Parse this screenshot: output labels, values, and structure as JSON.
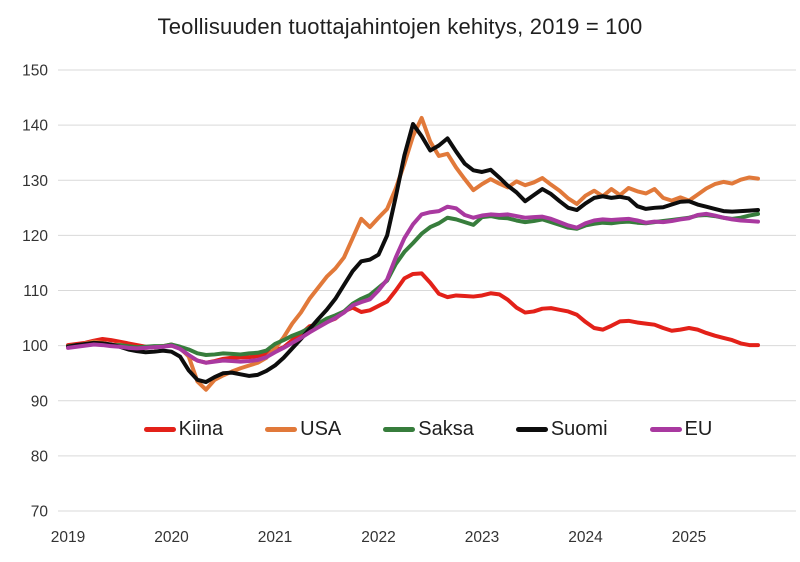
{
  "chart_data": {
    "type": "line",
    "title": "Teollisuuden tuottajahintojen kehitys, 2019 = 100",
    "x_axis": {
      "tick_labels": [
        "2019",
        "2020",
        "2021",
        "2022",
        "2023",
        "2024",
        "2025"
      ],
      "start": "2019-01",
      "end": "2025-09",
      "frequency": "monthly"
    },
    "y_axis": {
      "min": 70,
      "max": 150,
      "tick_step": 10
    },
    "grid": "horizontal-only",
    "legend_position": "bottom-center-overlay",
    "series": [
      {
        "name": "Kiina",
        "color": "#e32119",
        "values": [
          100.1,
          100.3,
          100.5,
          100.9,
          101.2,
          101.0,
          100.7,
          100.4,
          100.1,
          99.8,
          99.7,
          99.9,
          100.0,
          99.5,
          98.1,
          97.3,
          96.9,
          97.2,
          97.6,
          97.8,
          97.9,
          97.9,
          98.1,
          98.6,
          99.1,
          99.7,
          101.0,
          102.1,
          103.5,
          103.9,
          104.3,
          104.9,
          106.2,
          106.9,
          106.1,
          106.4,
          107.2,
          108.0,
          110.0,
          112.2,
          113.0,
          113.1,
          111.4,
          109.4,
          108.8,
          109.1,
          109.0,
          108.9,
          109.1,
          109.5,
          109.3,
          108.3,
          106.9,
          106.0,
          106.2,
          106.7,
          106.8,
          106.5,
          106.2,
          105.6,
          104.3,
          103.2,
          102.9,
          103.6,
          104.4,
          104.5,
          104.2,
          104.0,
          103.8,
          103.2,
          102.7,
          102.9,
          103.2,
          102.9,
          102.3,
          101.8,
          101.4,
          101.0,
          100.4,
          100.1,
          100.1
        ]
      },
      {
        "name": "USA",
        "color": "#e1793a",
        "values": [
          99.7,
          100.0,
          100.4,
          100.7,
          100.5,
          100.1,
          100.2,
          99.8,
          99.5,
          99.6,
          99.8,
          99.9,
          100.2,
          99.6,
          98.0,
          93.5,
          92.0,
          93.8,
          94.6,
          95.3,
          95.9,
          96.4,
          96.9,
          97.8,
          99.5,
          101.5,
          104.0,
          106.0,
          108.5,
          110.5,
          112.5,
          114.0,
          116.0,
          119.5,
          123.0,
          121.5,
          123.2,
          124.8,
          128.5,
          133.0,
          138.0,
          141.3,
          137.0,
          134.4,
          134.8,
          132.3,
          130.2,
          128.2,
          129.3,
          130.2,
          129.4,
          128.7,
          129.8,
          129.1,
          129.6,
          130.4,
          129.2,
          128.1,
          126.7,
          125.7,
          127.2,
          128.1,
          127.1,
          128.4,
          127.3,
          128.6,
          128.0,
          127.6,
          128.4,
          126.8,
          126.3,
          126.9,
          126.3,
          127.4,
          128.5,
          129.3,
          129.7,
          129.4,
          130.1,
          130.5,
          130.3
        ]
      },
      {
        "name": "Saksa",
        "color": "#377d3c",
        "values": [
          99.9,
          100.1,
          100.2,
          100.4,
          100.3,
          100.1,
          100.1,
          99.9,
          99.7,
          99.8,
          99.9,
          99.9,
          100.2,
          99.8,
          99.3,
          98.6,
          98.3,
          98.4,
          98.6,
          98.5,
          98.4,
          98.6,
          98.7,
          99.1,
          100.3,
          101.0,
          101.8,
          102.4,
          103.2,
          104.0,
          104.9,
          105.5,
          106.2,
          107.6,
          108.5,
          109.2,
          110.5,
          111.8,
          114.8,
          117.0,
          118.6,
          120.3,
          121.5,
          122.2,
          123.2,
          122.9,
          122.4,
          121.9,
          123.3,
          123.5,
          123.2,
          123.1,
          122.7,
          122.4,
          122.6,
          122.9,
          122.4,
          121.9,
          121.4,
          121.2,
          121.8,
          122.1,
          122.3,
          122.2,
          122.4,
          122.5,
          122.3,
          122.2,
          122.4,
          122.6,
          122.8,
          123.0,
          123.2,
          123.6,
          123.7,
          123.5,
          123.2,
          123.0,
          123.2,
          123.6,
          123.9
        ]
      },
      {
        "name": "Suomi",
        "color": "#0d0d0d",
        "values": [
          99.8,
          100.1,
          100.3,
          100.5,
          100.4,
          100.2,
          99.8,
          99.3,
          99.0,
          98.8,
          98.9,
          99.1,
          98.9,
          98.0,
          95.5,
          93.8,
          93.4,
          94.3,
          95.0,
          95.1,
          94.8,
          94.5,
          94.7,
          95.4,
          96.4,
          97.8,
          99.5,
          101.2,
          103.0,
          104.8,
          106.5,
          108.5,
          111.0,
          113.5,
          115.3,
          115.6,
          116.5,
          120.0,
          127.0,
          134.5,
          140.2,
          138.0,
          135.4,
          136.3,
          137.6,
          135.2,
          133.0,
          131.8,
          131.5,
          131.9,
          130.5,
          129.0,
          127.8,
          126.2,
          127.3,
          128.4,
          127.5,
          126.2,
          125.0,
          124.6,
          125.8,
          126.8,
          127.1,
          126.8,
          127.0,
          126.7,
          125.3,
          124.8,
          125.0,
          125.1,
          125.6,
          126.1,
          126.2,
          125.6,
          125.2,
          124.8,
          124.4,
          124.3,
          124.4,
          124.5,
          124.6
        ]
      },
      {
        "name": "EU",
        "color": "#a939a0",
        "values": [
          99.6,
          99.8,
          100.0,
          100.2,
          100.1,
          99.9,
          99.8,
          99.6,
          99.5,
          99.6,
          99.7,
          99.8,
          100.0,
          99.4,
          98.3,
          97.3,
          96.9,
          97.1,
          97.3,
          97.2,
          97.1,
          97.2,
          97.4,
          97.9,
          98.8,
          99.6,
          100.5,
          101.4,
          102.4,
          103.3,
          104.2,
          105.0,
          106.0,
          107.3,
          107.9,
          108.4,
          110.0,
          112.0,
          116.0,
          119.5,
          122.0,
          123.8,
          124.2,
          124.4,
          125.2,
          124.9,
          123.7,
          123.2,
          123.6,
          123.8,
          123.7,
          123.8,
          123.5,
          123.2,
          123.3,
          123.4,
          123.0,
          122.4,
          121.8,
          121.4,
          122.2,
          122.7,
          122.9,
          122.8,
          122.9,
          123.0,
          122.7,
          122.3,
          122.5,
          122.4,
          122.6,
          122.9,
          123.1,
          123.7,
          123.9,
          123.6,
          123.2,
          122.9,
          122.7,
          122.6,
          122.5
        ]
      }
    ]
  }
}
